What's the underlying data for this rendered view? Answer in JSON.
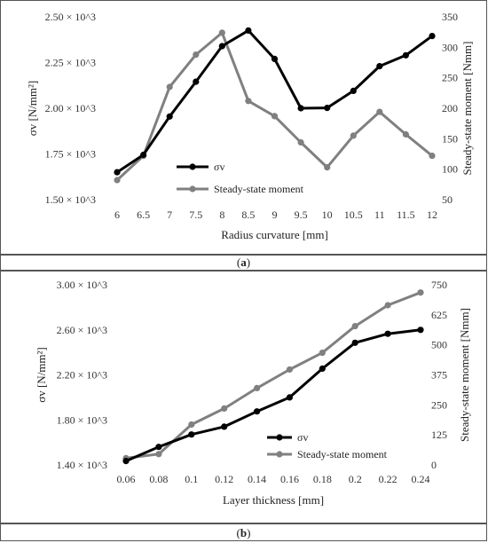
{
  "chart_data": [
    {
      "type": "line",
      "panel_label": "a",
      "xlabel": "Radius curvature [mm]",
      "ylabel_left": "σv [N/mm²]",
      "ylabel_right": "Steady-state moment [Nmm]",
      "categories": [
        "6",
        "6.5",
        "7",
        "7.5",
        "8",
        "8.5",
        "9",
        "9.5",
        "10",
        "10.5",
        "11",
        "11.5",
        "12"
      ],
      "ylim_left": [
        1500,
        2500
      ],
      "yticks_left": [
        "1.50 × 10^3",
        "1.75 × 10^3",
        "2.00 × 10^3",
        "2.25 × 10^3",
        "2.50 × 10^3"
      ],
      "ylim_right": [
        50,
        350
      ],
      "yticks_right": [
        "50",
        "100",
        "150",
        "200",
        "250",
        "300",
        "350"
      ],
      "series": [
        {
          "name": "σv",
          "axis": "left",
          "color": "#000000",
          "values": [
            1650,
            1745,
            1955,
            2145,
            2340,
            2425,
            2270,
            2000,
            2002,
            2095,
            2230,
            2290,
            2395
          ]
        },
        {
          "name": "Steady-state moment",
          "axis": "right",
          "color": "#808080",
          "values": [
            82,
            122,
            235,
            288,
            324,
            212,
            187,
            144,
            103,
            155,
            194,
            157,
            122
          ]
        }
      ],
      "legend_position": "center-left"
    },
    {
      "type": "line",
      "panel_label": "b",
      "xlabel": "Layer thickness [mm]",
      "ylabel_left": "σv [N/mm²]",
      "ylabel_right": "Steady-state moment [Nmm]",
      "categories": [
        "0.06",
        "0.08",
        "0.1",
        "0.12",
        "0.14",
        "0.16",
        "0.18",
        "0.2",
        "0.22",
        "0.24"
      ],
      "ylim_left": [
        1400,
        3000
      ],
      "yticks_left": [
        "1.40 × 10^3",
        "1.80 × 10^3",
        "2.20 × 10^3",
        "2.60 × 10^3",
        "3.00 × 10^3"
      ],
      "ylim_right": [
        0,
        750
      ],
      "yticks_right": [
        "0",
        "125",
        "250",
        "375",
        "500",
        "625",
        "750"
      ],
      "series": [
        {
          "name": "σv",
          "axis": "left",
          "color": "#000000",
          "values": [
            1435,
            1560,
            1670,
            1740,
            1875,
            2000,
            2255,
            2485,
            2565,
            2600
          ]
        },
        {
          "name": "Steady-state moment",
          "axis": "right",
          "color": "#808080",
          "values": [
            28,
            45,
            168,
            235,
            320,
            397,
            467,
            578,
            665,
            718
          ]
        }
      ],
      "legend_position": "bottom-right"
    }
  ],
  "captions": [
    {
      "open": "(",
      "label": "a",
      "close": ")"
    },
    {
      "open": "(",
      "label": "b",
      "close": ")"
    }
  ]
}
